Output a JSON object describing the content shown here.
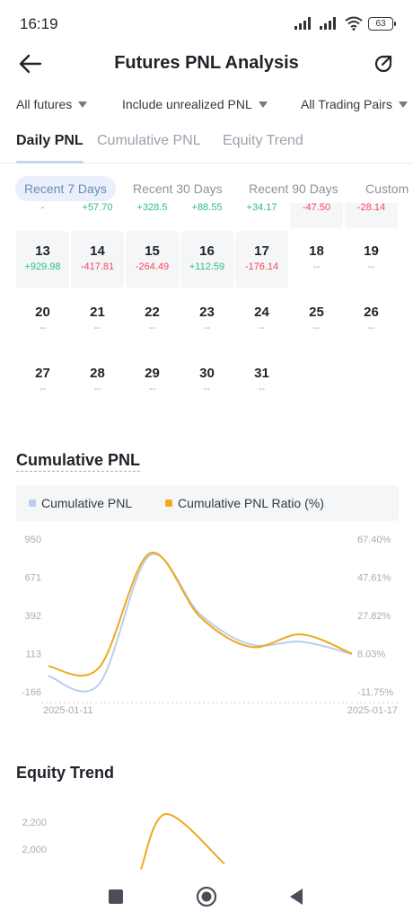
{
  "status_bar": {
    "time": "16:19",
    "battery": "63"
  },
  "header": {
    "title": "Futures PNL Analysis"
  },
  "filters": [
    {
      "label": "All futures"
    },
    {
      "label": "Include unrealized PNL"
    },
    {
      "label": "All Trading Pairs"
    }
  ],
  "tabs": [
    {
      "label": "Daily PNL",
      "active": true
    },
    {
      "label": "Cumulative PNL",
      "active": false
    },
    {
      "label": "Equity Trend",
      "active": false
    }
  ],
  "ranges": [
    {
      "label": "Recent 7 Days",
      "active": true
    },
    {
      "label": "Recent 30 Days",
      "active": false
    },
    {
      "label": "Recent 90 Days",
      "active": false
    },
    {
      "label": "Custom",
      "active": false
    }
  ],
  "calendar": {
    "partial_row": [
      "-",
      "+57.70",
      "+328.5",
      "+88.55",
      "+34.17",
      "-47.50",
      "-28.14"
    ],
    "rows": [
      [
        {
          "day": "13",
          "value": "+929.98",
          "tone": "pos"
        },
        {
          "day": "14",
          "value": "-417.81",
          "tone": "neg"
        },
        {
          "day": "15",
          "value": "-264.49",
          "tone": "neg"
        },
        {
          "day": "16",
          "value": "+112.59",
          "tone": "pos"
        },
        {
          "day": "17",
          "value": "-176.14",
          "tone": "neg"
        },
        {
          "day": "18",
          "value": "--",
          "tone": "none"
        },
        {
          "day": "19",
          "value": "--",
          "tone": "none"
        }
      ],
      [
        {
          "day": "20",
          "value": "--",
          "tone": "none"
        },
        {
          "day": "21",
          "value": "--",
          "tone": "none"
        },
        {
          "day": "22",
          "value": "--",
          "tone": "none"
        },
        {
          "day": "23",
          "value": "--",
          "tone": "none"
        },
        {
          "day": "24",
          "value": "--",
          "tone": "none"
        },
        {
          "day": "25",
          "value": "--",
          "tone": "none"
        },
        {
          "day": "26",
          "value": "--",
          "tone": "none"
        }
      ],
      [
        {
          "day": "27",
          "value": "--",
          "tone": "none"
        },
        {
          "day": "28",
          "value": "--",
          "tone": "none"
        },
        {
          "day": "29",
          "value": "--",
          "tone": "none"
        },
        {
          "day": "30",
          "value": "--",
          "tone": "none"
        },
        {
          "day": "31",
          "value": "--",
          "tone": "none"
        }
      ]
    ]
  },
  "cumulative_section": {
    "title": "Cumulative PNL"
  },
  "equity_section": {
    "title": "Equity Trend"
  },
  "colors": {
    "pnl_line": "#b8cfee",
    "ratio_line": "#f0a81e",
    "positive": "#2ebd85",
    "negative": "#f6465d"
  },
  "chart_data": [
    {
      "type": "line",
      "title": "Cumulative PNL",
      "legend": [
        "Cumulative PNL",
        "Cumulative PNL Ratio (%)"
      ],
      "legend_position": "top",
      "x_labels": [
        "2025-01-11",
        "2025-01-17"
      ],
      "x": [
        "2025-01-11",
        "2025-01-12",
        "2025-01-13",
        "2025-01-14",
        "2025-01-15",
        "2025-01-16",
        "2025-01-17"
      ],
      "y_left_ticks": [
        "950",
        "671",
        "392",
        "113",
        "-166"
      ],
      "y_right_ticks": [
        "67.40%",
        "47.61%",
        "27.82%",
        "8.03%",
        "-11.75%"
      ],
      "y_left_range": [
        -166,
        950
      ],
      "y_right_range": [
        -11.75,
        67.4
      ],
      "series": [
        {
          "name": "Cumulative PNL",
          "axis": "left",
          "color": "#b8cfee",
          "values": [
            -50,
            -110,
            830,
            400,
            180,
            200,
            110
          ]
        },
        {
          "name": "Cumulative PNL Ratio (%)",
          "axis": "right",
          "color": "#f0a81e",
          "values": [
            1.5,
            0.8,
            60.0,
            27.0,
            11.5,
            18.0,
            8.0
          ]
        }
      ],
      "grid": false
    },
    {
      "type": "line",
      "title": "Equity Trend",
      "y_left_ticks": [
        "2,200",
        "2,000"
      ],
      "series": [
        {
          "name": "Equity",
          "color": "#f0a81e",
          "values": [
            1850,
            2260,
            1890
          ]
        }
      ]
    }
  ]
}
